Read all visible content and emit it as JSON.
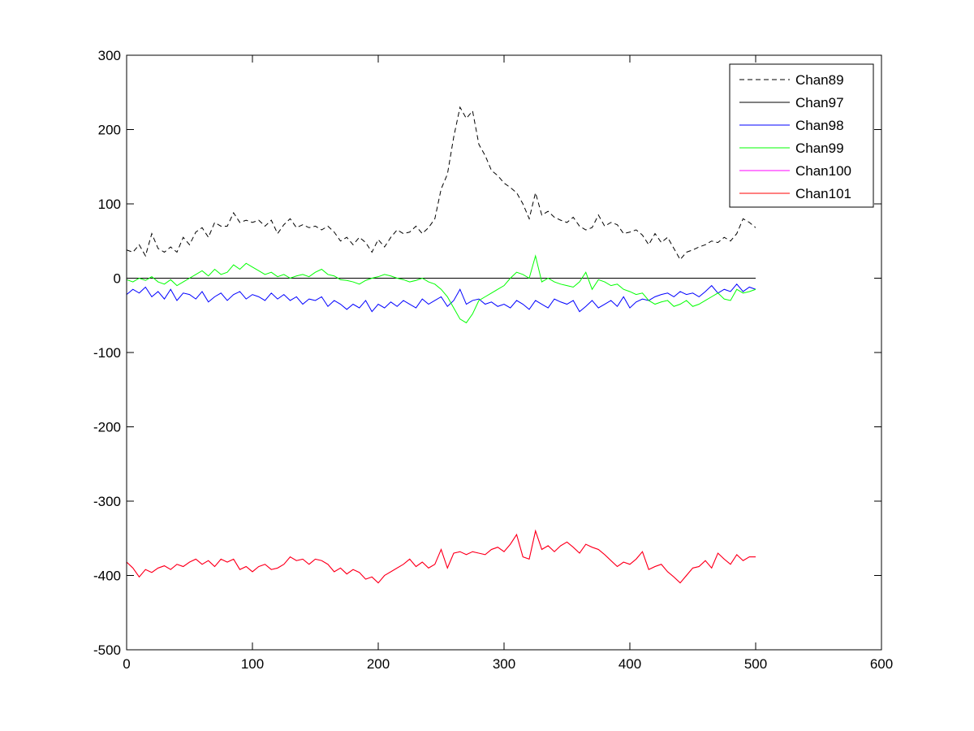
{
  "chart_data": {
    "type": "line",
    "title": "",
    "xlabel": "",
    "ylabel": "",
    "xlim": [
      0,
      600
    ],
    "ylim": [
      -500,
      300
    ],
    "xticks": [
      0,
      100,
      200,
      300,
      400,
      500,
      600
    ],
    "yticks": [
      -500,
      -400,
      -300,
      -200,
      -100,
      0,
      100,
      200,
      300
    ],
    "xtick_labels": [
      "0",
      "100",
      "200",
      "300",
      "400",
      "500",
      "600"
    ],
    "ytick_labels": [
      "-500",
      "-400",
      "-300",
      "-200",
      "-100",
      "0",
      "100",
      "200",
      "300"
    ],
    "grid": false,
    "legend_position": "top-right",
    "series": [
      {
        "name": "Chan89",
        "color": "#000000",
        "dash": true,
        "x": [
          0,
          5,
          10,
          15,
          20,
          25,
          30,
          35,
          40,
          45,
          50,
          55,
          60,
          65,
          70,
          75,
          80,
          85,
          90,
          95,
          100,
          105,
          110,
          115,
          120,
          125,
          130,
          135,
          140,
          145,
          150,
          155,
          160,
          165,
          170,
          175,
          180,
          185,
          190,
          195,
          200,
          205,
          210,
          215,
          220,
          225,
          230,
          235,
          240,
          245,
          250,
          255,
          260,
          265,
          270,
          275,
          280,
          285,
          290,
          295,
          300,
          305,
          310,
          315,
          320,
          325,
          330,
          335,
          340,
          345,
          350,
          355,
          360,
          365,
          370,
          375,
          380,
          385,
          390,
          395,
          400,
          405,
          410,
          415,
          420,
          425,
          430,
          435,
          440,
          445,
          450,
          455,
          460,
          465,
          470,
          475,
          480,
          485,
          490,
          495,
          500
        ],
        "y": [
          38,
          35,
          45,
          30,
          60,
          40,
          35,
          42,
          35,
          55,
          45,
          62,
          68,
          55,
          75,
          70,
          70,
          88,
          75,
          78,
          75,
          78,
          70,
          78,
          60,
          72,
          80,
          68,
          72,
          68,
          70,
          65,
          70,
          62,
          50,
          55,
          45,
          55,
          48,
          35,
          52,
          42,
          55,
          65,
          60,
          62,
          70,
          60,
          68,
          80,
          120,
          140,
          190,
          230,
          215,
          225,
          180,
          165,
          145,
          138,
          128,
          122,
          115,
          100,
          80,
          115,
          85,
          90,
          82,
          78,
          75,
          82,
          70,
          65,
          68,
          85,
          70,
          75,
          72,
          60,
          62,
          65,
          58,
          45,
          60,
          48,
          55,
          40,
          25,
          35,
          38,
          42,
          45,
          50,
          48,
          55,
          50,
          60,
          80,
          75,
          68
        ]
      },
      {
        "name": "Chan97",
        "color": "#000000",
        "dash": false,
        "x": [
          0,
          500
        ],
        "y": [
          0,
          0
        ]
      },
      {
        "name": "Chan98",
        "color": "#0000ff",
        "dash": false,
        "x": [
          0,
          5,
          10,
          15,
          20,
          25,
          30,
          35,
          40,
          45,
          50,
          55,
          60,
          65,
          70,
          75,
          80,
          85,
          90,
          95,
          100,
          105,
          110,
          115,
          120,
          125,
          130,
          135,
          140,
          145,
          150,
          155,
          160,
          165,
          170,
          175,
          180,
          185,
          190,
          195,
          200,
          205,
          210,
          215,
          220,
          225,
          230,
          235,
          240,
          245,
          250,
          255,
          260,
          265,
          270,
          275,
          280,
          285,
          290,
          295,
          300,
          305,
          310,
          315,
          320,
          325,
          330,
          335,
          340,
          345,
          350,
          355,
          360,
          365,
          370,
          375,
          380,
          385,
          390,
          395,
          400,
          405,
          410,
          415,
          420,
          425,
          430,
          435,
          440,
          445,
          450,
          455,
          460,
          465,
          470,
          475,
          480,
          485,
          490,
          495,
          500
        ],
        "y": [
          -22,
          -15,
          -20,
          -12,
          -25,
          -18,
          -28,
          -15,
          -30,
          -20,
          -22,
          -28,
          -18,
          -32,
          -25,
          -20,
          -30,
          -22,
          -18,
          -28,
          -22,
          -25,
          -30,
          -20,
          -28,
          -22,
          -30,
          -25,
          -35,
          -28,
          -30,
          -25,
          -38,
          -30,
          -35,
          -42,
          -35,
          -40,
          -30,
          -45,
          -35,
          -40,
          -32,
          -38,
          -30,
          -35,
          -40,
          -28,
          -35,
          -30,
          -25,
          -38,
          -30,
          -15,
          -35,
          -30,
          -28,
          -35,
          -32,
          -38,
          -35,
          -40,
          -30,
          -35,
          -42,
          -30,
          -35,
          -40,
          -28,
          -32,
          -35,
          -30,
          -45,
          -38,
          -30,
          -40,
          -35,
          -30,
          -38,
          -25,
          -40,
          -32,
          -28,
          -30,
          -25,
          -22,
          -20,
          -25,
          -18,
          -22,
          -20,
          -25,
          -18,
          -10,
          -20,
          -15,
          -18,
          -8,
          -18,
          -12,
          -15
        ]
      },
      {
        "name": "Chan99",
        "color": "#00ff00",
        "dash": false,
        "x": [
          0,
          5,
          10,
          15,
          20,
          25,
          30,
          35,
          40,
          45,
          50,
          55,
          60,
          65,
          70,
          75,
          80,
          85,
          90,
          95,
          100,
          105,
          110,
          115,
          120,
          125,
          130,
          135,
          140,
          145,
          150,
          155,
          160,
          165,
          170,
          175,
          180,
          185,
          190,
          195,
          200,
          205,
          210,
          215,
          220,
          225,
          230,
          235,
          240,
          245,
          250,
          255,
          260,
          265,
          270,
          275,
          280,
          285,
          290,
          295,
          300,
          305,
          310,
          315,
          320,
          325,
          330,
          335,
          340,
          345,
          350,
          355,
          360,
          365,
          370,
          375,
          380,
          385,
          390,
          395,
          400,
          405,
          410,
          415,
          420,
          425,
          430,
          435,
          440,
          445,
          450,
          455,
          460,
          465,
          470,
          475,
          480,
          485,
          490,
          495,
          500
        ],
        "y": [
          -2,
          -5,
          0,
          -3,
          2,
          -5,
          -8,
          -2,
          -10,
          -5,
          0,
          5,
          10,
          3,
          12,
          5,
          8,
          18,
          12,
          20,
          15,
          10,
          5,
          8,
          2,
          5,
          0,
          3,
          5,
          2,
          8,
          12,
          5,
          3,
          -2,
          -3,
          -5,
          -8,
          -3,
          0,
          2,
          5,
          3,
          0,
          -2,
          -5,
          -3,
          0,
          -5,
          -8,
          -15,
          -25,
          -40,
          -55,
          -60,
          -48,
          -30,
          -25,
          -20,
          -15,
          -10,
          0,
          8,
          5,
          0,
          30,
          -5,
          0,
          -5,
          -8,
          -10,
          -12,
          -5,
          8,
          -15,
          -2,
          -5,
          -10,
          -8,
          -15,
          -18,
          -22,
          -20,
          -30,
          -35,
          -32,
          -30,
          -38,
          -35,
          -30,
          -38,
          -35,
          -30,
          -25,
          -20,
          -28,
          -30,
          -15,
          -20,
          -18,
          -15
        ]
      },
      {
        "name": "Chan100",
        "color": "#ff00ff",
        "dash": false,
        "x": [
          0,
          5,
          10,
          15,
          20,
          25,
          30,
          35,
          40,
          45,
          50,
          55,
          60,
          65,
          70,
          75,
          80,
          85,
          90,
          95,
          100,
          105,
          110,
          115,
          120,
          125,
          130,
          135,
          140,
          145,
          150,
          155,
          160,
          165,
          170,
          175,
          180,
          185,
          190,
          195,
          200,
          205,
          210,
          215,
          220,
          225,
          230,
          235,
          240,
          245,
          250,
          255,
          260,
          265,
          270,
          275,
          280,
          285,
          290,
          295,
          300,
          305,
          310,
          315,
          320,
          325,
          330,
          335,
          340,
          345,
          350,
          355,
          360,
          365,
          370,
          375,
          380,
          385,
          390,
          395,
          400,
          405,
          410,
          415,
          420,
          425,
          430,
          435,
          440,
          445,
          450,
          455,
          460,
          465,
          470,
          475,
          480,
          485,
          490,
          495,
          500
        ],
        "y": [
          -382,
          -390,
          -402,
          -392,
          -396,
          -390,
          -387,
          -392,
          -385,
          -388,
          -382,
          -378,
          -385,
          -380,
          -388,
          -378,
          -382,
          -378,
          -392,
          -388,
          -395,
          -388,
          -385,
          -392,
          -390,
          -385,
          -375,
          -380,
          -378,
          -385,
          -378,
          -380,
          -385,
          -395,
          -390,
          -398,
          -392,
          -396,
          -405,
          -402,
          -410,
          -400,
          -395,
          -390,
          -385,
          -378,
          -388,
          -382,
          -390,
          -385,
          -365,
          -390,
          -370,
          -368,
          -372,
          -368,
          -370,
          -372,
          -365,
          -362,
          -368,
          -358,
          -345,
          -375,
          -378,
          -340,
          -365,
          -360,
          -368,
          -360,
          -355,
          -362,
          -370,
          -358,
          -362,
          -365,
          -372,
          -380,
          -388,
          -382,
          -385,
          -378,
          -368,
          -392,
          -388,
          -385,
          -395,
          -402,
          -410,
          -400,
          -390,
          -388,
          -380,
          -390,
          -370,
          -378,
          -385,
          -372,
          -380,
          -375,
          -375
        ]
      },
      {
        "name": "Chan101",
        "color": "#ff0000",
        "dash": false,
        "x": [
          0,
          5,
          10,
          15,
          20,
          25,
          30,
          35,
          40,
          45,
          50,
          55,
          60,
          65,
          70,
          75,
          80,
          85,
          90,
          95,
          100,
          105,
          110,
          115,
          120,
          125,
          130,
          135,
          140,
          145,
          150,
          155,
          160,
          165,
          170,
          175,
          180,
          185,
          190,
          195,
          200,
          205,
          210,
          215,
          220,
          225,
          230,
          235,
          240,
          245,
          250,
          255,
          260,
          265,
          270,
          275,
          280,
          285,
          290,
          295,
          300,
          305,
          310,
          315,
          320,
          325,
          330,
          335,
          340,
          345,
          350,
          355,
          360,
          365,
          370,
          375,
          380,
          385,
          390,
          395,
          400,
          405,
          410,
          415,
          420,
          425,
          430,
          435,
          440,
          445,
          450,
          455,
          460,
          465,
          470,
          475,
          480,
          485,
          490,
          495,
          500
        ],
        "y": [
          -382,
          -390,
          -402,
          -392,
          -396,
          -390,
          -387,
          -392,
          -385,
          -388,
          -382,
          -378,
          -385,
          -380,
          -388,
          -378,
          -382,
          -378,
          -392,
          -388,
          -395,
          -388,
          -385,
          -392,
          -390,
          -385,
          -375,
          -380,
          -378,
          -385,
          -378,
          -380,
          -385,
          -395,
          -390,
          -398,
          -392,
          -396,
          -405,
          -402,
          -410,
          -400,
          -395,
          -390,
          -385,
          -378,
          -388,
          -382,
          -390,
          -385,
          -365,
          -390,
          -370,
          -368,
          -372,
          -368,
          -370,
          -372,
          -365,
          -362,
          -368,
          -358,
          -345,
          -375,
          -378,
          -340,
          -365,
          -360,
          -368,
          -360,
          -355,
          -362,
          -370,
          -358,
          -362,
          -365,
          -372,
          -380,
          -388,
          -382,
          -385,
          -378,
          -368,
          -392,
          -388,
          -385,
          -395,
          -402,
          -410,
          -400,
          -390,
          -388,
          -380,
          -390,
          -370,
          -378,
          -385,
          -372,
          -380,
          -375,
          -375
        ]
      }
    ]
  }
}
